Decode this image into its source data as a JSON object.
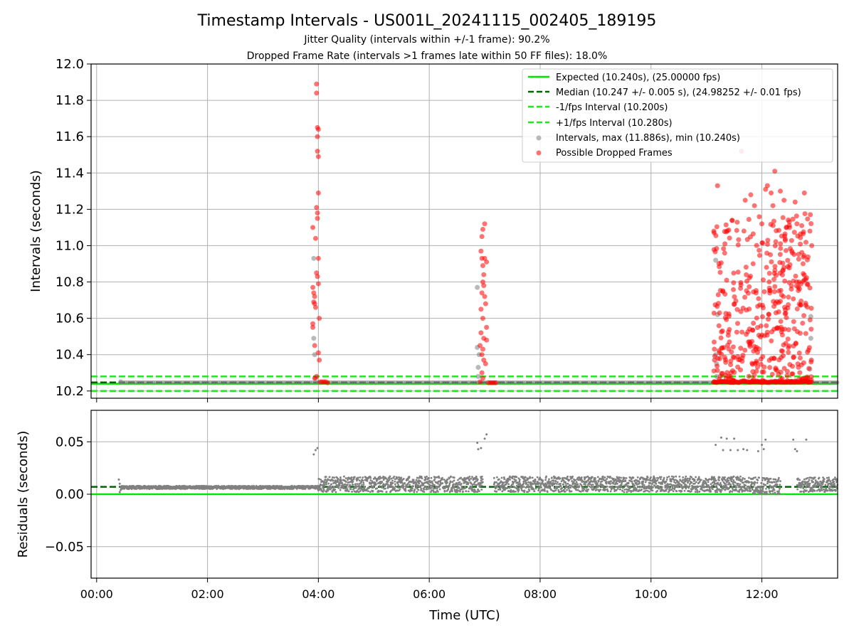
{
  "figure": {
    "title": "Timestamp Intervals - US001L_20241115_002405_189195",
    "subtitle_1": "Jitter Quality (intervals within +/-1 frame): 90.2%",
    "subtitle_2": "Dropped Frame Rate (intervals >1 frames late within 50 FF files): 18.0%"
  },
  "colors": {
    "expected": "#00e400",
    "median": "#006400",
    "fps_interval": "#1ee81e",
    "intervals": "#808080",
    "dropped": "#ff0000",
    "grid": "#b0b0b0"
  },
  "chart_data": [
    {
      "type": "scatter",
      "panel": "intervals",
      "ylabel": "Intervals (seconds)",
      "ylim": [
        10.16,
        12.0
      ],
      "xlim": [
        "23:54",
        "13:22"
      ],
      "yticks": [
        "10.2",
        "10.4",
        "10.6",
        "10.8",
        "11.0",
        "11.2",
        "11.4",
        "11.6",
        "11.8",
        "12.0"
      ],
      "grid": true,
      "legend_placement": "upper right",
      "reference_lines": [
        {
          "name": "Expected (10.240s), (25.00000 fps)",
          "y": 10.24,
          "style": "solid"
        },
        {
          "name": "Median (10.247 +/- 0.005 s), (24.98252 +/- 0.01 fps)",
          "y": 10.247,
          "style": "dashed"
        },
        {
          "name": "-1/fps Interval (10.200s)",
          "y": 10.2,
          "style": "dashed"
        },
        {
          "name": "+1/fps Interval (10.280s)",
          "y": 10.28,
          "style": "dashed"
        }
      ],
      "series": [
        {
          "name": "Intervals, max (11.886s), min (10.240s)",
          "baseline_value": 10.247,
          "baseline_span": [
            [
              "00:26",
              "04:00"
            ],
            [
              "04:00",
              "13:22"
            ]
          ],
          "points": [
            [
              "00:26",
              10.25
            ],
            [
              "03:55",
              10.93
            ],
            [
              "03:55",
              10.49
            ],
            [
              "03:56",
              10.4
            ],
            [
              "03:57",
              10.27
            ],
            [
              "06:52",
              10.77
            ],
            [
              "06:52",
              10.44
            ],
            [
              "06:53",
              10.33
            ],
            [
              "06:54",
              10.4
            ],
            [
              "06:53",
              10.28
            ],
            [
              "11:10",
              10.92
            ],
            [
              "11:10",
              10.4
            ],
            [
              "11:11",
              10.35
            ],
            [
              "11:11",
              10.28
            ],
            [
              "11:12",
              10.62
            ],
            [
              "12:53",
              10.61
            ],
            [
              "12:53",
              10.49
            ],
            [
              "12:52",
              10.32
            ]
          ]
        },
        {
          "name": "Possible Dropped Frames",
          "points": [
            [
              "03:58",
              11.89
            ],
            [
              "03:58",
              11.84
            ],
            [
              "03:59",
              11.65
            ],
            [
              "04:00",
              11.64
            ],
            [
              "03:59",
              11.6
            ],
            [
              "03:59",
              11.52
            ],
            [
              "04:00",
              11.49
            ],
            [
              "04:00",
              11.29
            ],
            [
              "03:58",
              11.21
            ],
            [
              "03:59",
              11.18
            ],
            [
              "03:59",
              11.15
            ],
            [
              "03:54",
              11.1
            ],
            [
              "03:57",
              11.04
            ],
            [
              "04:00",
              10.93
            ],
            [
              "03:58",
              10.85
            ],
            [
              "03:59",
              10.83
            ],
            [
              "04:00",
              10.79
            ],
            [
              "03:54",
              10.77
            ],
            [
              "03:55",
              10.74
            ],
            [
              "03:56",
              10.72
            ],
            [
              "03:55",
              10.69
            ],
            [
              "03:56",
              10.68
            ],
            [
              "03:57",
              10.66
            ],
            [
              "04:01",
              10.6
            ],
            [
              "03:54",
              10.57
            ],
            [
              "03:54",
              10.55
            ],
            [
              "03:56",
              10.45
            ],
            [
              "04:00",
              10.41
            ],
            [
              "04:01",
              10.37
            ],
            [
              "03:56",
              10.27
            ],
            [
              "03:58",
              10.28
            ],
            [
              "04:02",
              10.25
            ],
            [
              "04:04",
              10.25
            ],
            [
              "04:06",
              10.25
            ],
            [
              "04:08",
              10.25
            ],
            [
              "04:10",
              10.245
            ],
            [
              "07:00",
              11.12
            ],
            [
              "06:58",
              11.09
            ],
            [
              "06:57",
              11.05
            ],
            [
              "06:56",
              10.97
            ],
            [
              "06:57",
              10.93
            ],
            [
              "07:00",
              10.93
            ],
            [
              "07:02",
              10.91
            ],
            [
              "06:58",
              10.89
            ],
            [
              "06:59",
              10.84
            ],
            [
              "06:58",
              10.8
            ],
            [
              "06:59",
              10.78
            ],
            [
              "06:57",
              10.74
            ],
            [
              "07:00",
              10.72
            ],
            [
              "07:01",
              10.68
            ],
            [
              "06:56",
              10.65
            ],
            [
              "06:58",
              10.6
            ],
            [
              "07:02",
              10.55
            ],
            [
              "06:56",
              10.52
            ],
            [
              "06:59",
              10.49
            ],
            [
              "07:02",
              10.48
            ],
            [
              "06:55",
              10.45
            ],
            [
              "06:58",
              10.43
            ],
            [
              "06:57",
              10.4
            ],
            [
              "06:59",
              10.37
            ],
            [
              "07:01",
              10.35
            ],
            [
              "06:57",
              10.3
            ],
            [
              "06:58",
              10.27
            ],
            [
              "06:55",
              10.25
            ],
            [
              "07:04",
              10.245
            ],
            [
              "07:06",
              10.245
            ],
            [
              "07:08",
              10.245
            ],
            [
              "07:10",
              10.245
            ],
            [
              "07:12",
              10.245
            ]
          ],
          "clusters": [
            {
              "x_range": [
                "11:08",
                "12:54"
              ],
              "y_range": [
                10.25,
                11.41
              ],
              "count": 430
            }
          ],
          "notable_points": [
            [
              "11:12",
              11.33
            ],
            [
              "11:20",
              11.01
            ],
            [
              "11:38",
              11.52
            ],
            [
              "11:42",
              11.25
            ],
            [
              "11:48",
              11.28
            ],
            [
              "11:52",
              11.22
            ],
            [
              "12:00",
              11.12
            ],
            [
              "12:04",
              11.31
            ],
            [
              "12:06",
              11.33
            ],
            [
              "12:10",
              11.29
            ],
            [
              "12:12",
              11.22
            ],
            [
              "12:14",
              11.41
            ],
            [
              "12:20",
              11.3
            ],
            [
              "12:24",
              11.25
            ],
            [
              "12:30",
              11.1
            ],
            [
              "12:36",
              11.24
            ],
            [
              "12:38",
              11.12
            ],
            [
              "12:46",
              11.29
            ],
            [
              "12:52",
              11.08
            ],
            [
              "12:54",
              11.0
            ]
          ]
        }
      ]
    },
    {
      "type": "scatter",
      "panel": "residuals",
      "xlabel": "Time (UTC)",
      "ylabel": "Residuals (seconds)",
      "ylim": [
        -0.08,
        0.08
      ],
      "xlim": [
        "23:54",
        "13:22"
      ],
      "yticks": [
        "−0.05",
        "0.00",
        "0.05"
      ],
      "xticks": [
        "00:00",
        "02:00",
        "04:00",
        "06:00",
        "08:00",
        "10:00",
        "12:00"
      ],
      "grid": true,
      "reference_lines": [
        {
          "name": "Expected",
          "y": 0.0,
          "style": "solid"
        },
        {
          "name": "Median",
          "y": 0.007,
          "style": "dashed"
        }
      ],
      "series": [
        {
          "name": "Residuals",
          "segments": [
            {
              "x_range": [
                "00:26",
                "04:00"
              ],
              "y_range": [
                0.005,
                0.008
              ]
            },
            {
              "x_range": [
                "04:00",
                "06:58"
              ],
              "y_range": [
                0.002,
                0.017
              ]
            },
            {
              "x_range": [
                "07:10",
                "11:50"
              ],
              "y_range": [
                0.002,
                0.017
              ]
            },
            {
              "x_range": [
                "11:50",
                "12:20"
              ],
              "y_range": [
                0.0,
                0.016
              ]
            },
            {
              "x_range": [
                "12:38",
                "13:22"
              ],
              "y_range": [
                0.002,
                0.016
              ]
            }
          ],
          "points": [
            [
              "00:24",
              0.014
            ],
            [
              "00:25",
              0.01
            ],
            [
              "00:26",
              0.004
            ],
            [
              "00:25",
              0.002
            ],
            [
              "03:55",
              0.038
            ],
            [
              "03:57",
              0.042
            ],
            [
              "03:59",
              0.044
            ],
            [
              "06:52",
              0.049
            ],
            [
              "06:53",
              0.043
            ],
            [
              "06:56",
              0.044
            ],
            [
              "07:00",
              0.053
            ],
            [
              "07:02",
              0.057
            ],
            [
              "11:10",
              0.047
            ],
            [
              "11:16",
              0.054
            ],
            [
              "11:18",
              0.042
            ],
            [
              "11:22",
              0.053
            ],
            [
              "11:26",
              0.042
            ],
            [
              "11:30",
              0.053
            ],
            [
              "11:34",
              0.042
            ],
            [
              "11:40",
              0.043
            ],
            [
              "11:44",
              0.042
            ],
            [
              "11:56",
              0.041
            ],
            [
              "12:00",
              0.047
            ],
            [
              "12:02",
              0.043
            ],
            [
              "12:04",
              0.052
            ],
            [
              "12:34",
              0.052
            ],
            [
              "12:36",
              0.043
            ],
            [
              "12:38",
              0.041
            ],
            [
              "12:48",
              0.052
            ]
          ]
        }
      ]
    }
  ]
}
